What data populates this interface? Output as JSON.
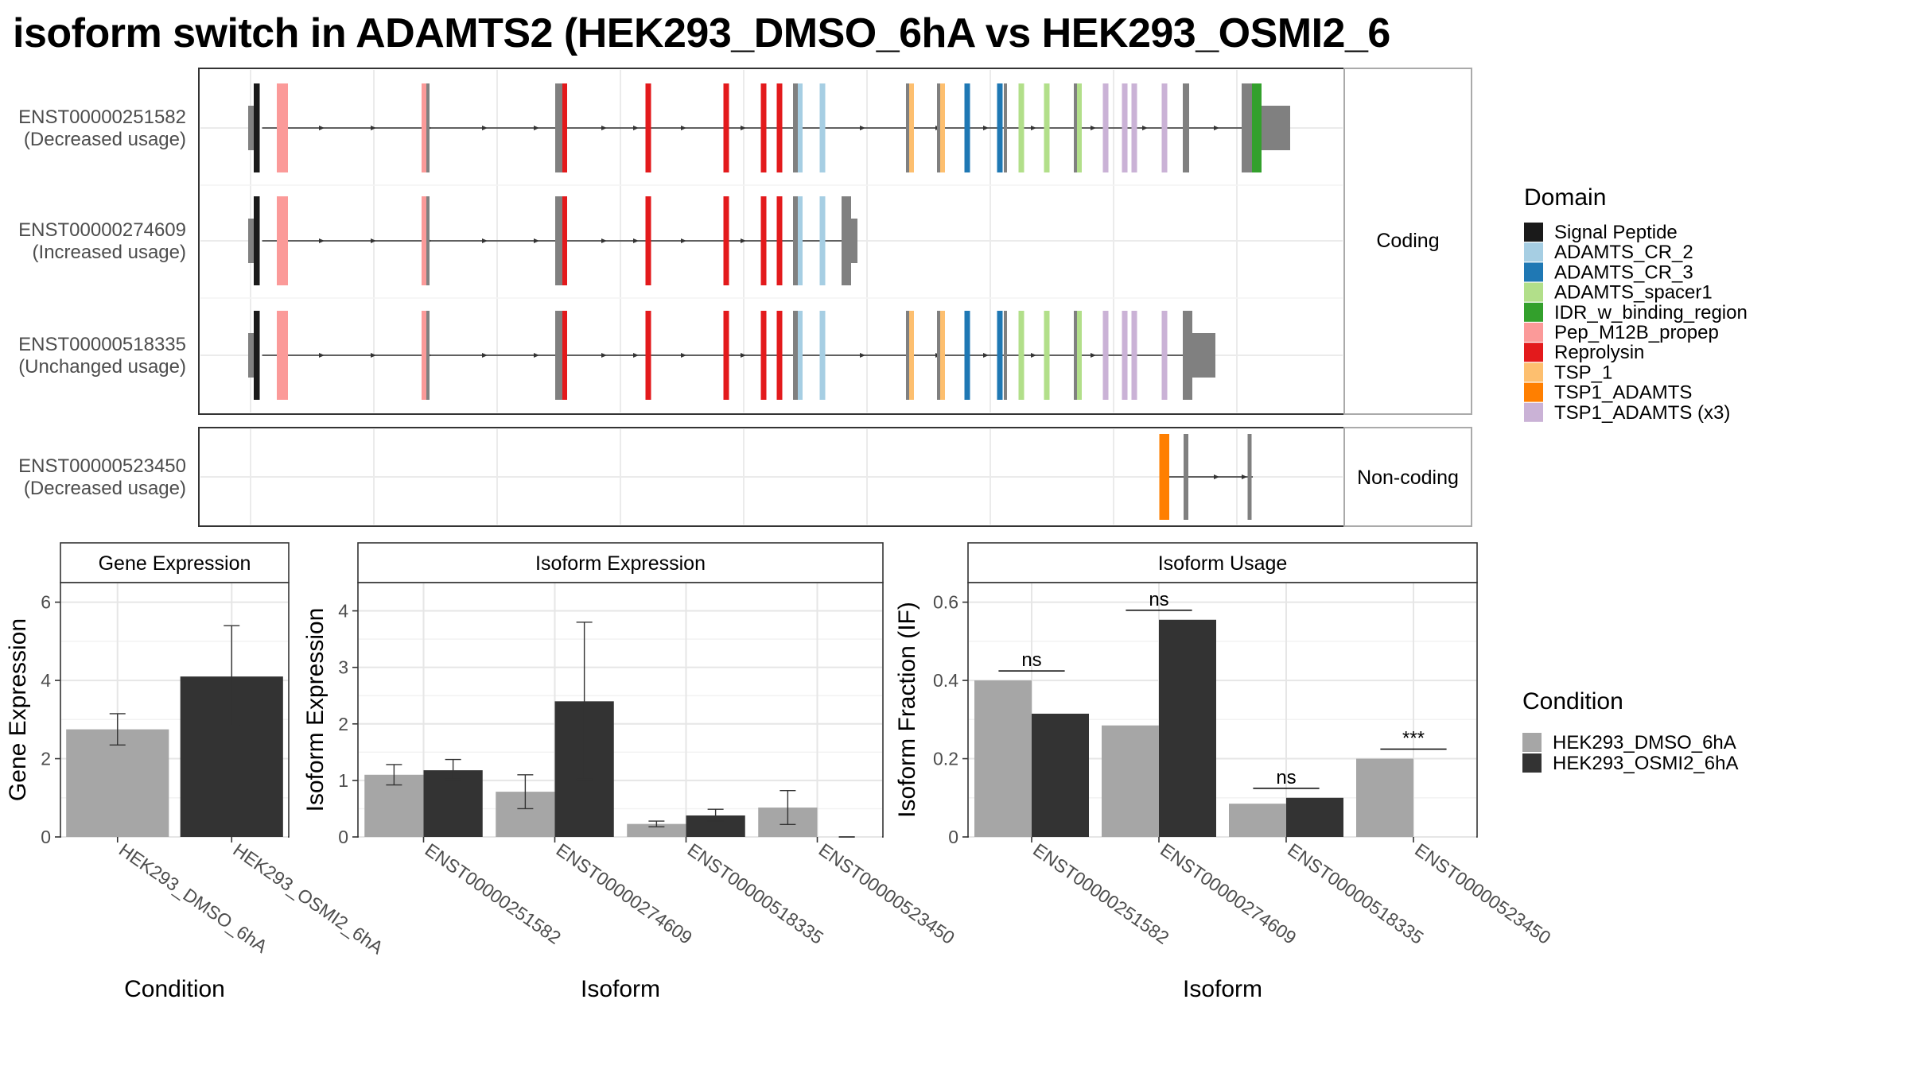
{
  "title": "isoform switch in ADAMTS2 (HEK293_DMSO_6hA vs HEK293_OSMI2_6",
  "structure": {
    "coding_label": "Coding",
    "noncoding_label": "Non-coding",
    "coding": [
      {
        "id": "ENST00000251582",
        "usage": "(Decreased usage)"
      },
      {
        "id": "ENST00000274609",
        "usage": "(Increased usage)"
      },
      {
        "id": "ENST00000518335",
        "usage": "(Unchanged usage)"
      }
    ],
    "noncoding": [
      {
        "id": "ENST00000523450",
        "usage": "(Decreased usage)"
      }
    ]
  },
  "domain_legend": {
    "title": "Domain",
    "items": [
      {
        "label": "Signal Peptide",
        "color": "#1a1a1a"
      },
      {
        "label": "ADAMTS_CR_2",
        "color": "#a6cee3"
      },
      {
        "label": "ADAMTS_CR_3",
        "color": "#1f78b4"
      },
      {
        "label": "ADAMTS_spacer1",
        "color": "#b2df8a"
      },
      {
        "label": "IDR_w_binding_region",
        "color": "#33a02c"
      },
      {
        "label": "Pep_M12B_propep",
        "color": "#fb9a99"
      },
      {
        "label": "Reprolysin",
        "color": "#e31a1c"
      },
      {
        "label": "TSP_1",
        "color": "#fdbf6f"
      },
      {
        "label": "TSP1_ADAMTS",
        "color": "#ff7f00"
      },
      {
        "label": "TSP1_ADAMTS (x3)",
        "color": "#cab2d6"
      }
    ]
  },
  "condition_legend": {
    "title": "Condition",
    "items": [
      {
        "label": "HEK293_DMSO_6hA",
        "color": "#a6a6a6"
      },
      {
        "label": "HEK293_OSMI2_6hA",
        "color": "#333333"
      }
    ]
  },
  "chart_data": [
    {
      "type": "bar",
      "title": "Gene Expression",
      "xlabel": "Condition",
      "ylabel": "Gene Expression",
      "categories": [
        "HEK293_DMSO_6hA",
        "HEK293_OSMI2_6hA"
      ],
      "values": [
        2.75,
        4.1
      ],
      "errors": [
        [
          2.35,
          3.15
        ],
        [
          2.85,
          5.4
        ]
      ],
      "ylim": [
        0,
        6.5
      ],
      "yticks": [
        0,
        2,
        4,
        6
      ]
    },
    {
      "type": "bar",
      "title": "Isoform Expression",
      "xlabel": "Isoform",
      "ylabel": "Isoform Expression",
      "categories": [
        "ENST00000251582",
        "ENST00000274609",
        "ENST00000518335",
        "ENST00000523450"
      ],
      "series": [
        {
          "name": "HEK293_DMSO_6hA",
          "values": [
            1.1,
            0.8,
            0.23,
            0.52
          ],
          "errors": [
            [
              0.92,
              1.28
            ],
            [
              0.5,
              1.1
            ],
            [
              0.18,
              0.28
            ],
            [
              0.22,
              0.82
            ]
          ]
        },
        {
          "name": "HEK293_OSMI2_6hA",
          "values": [
            1.18,
            2.4,
            0.38,
            0.0
          ],
          "errors": [
            [
              1.02,
              1.37
            ],
            [
              1.02,
              3.8
            ],
            [
              0.28,
              0.49
            ],
            [
              0.0,
              0.0
            ]
          ]
        }
      ],
      "ylim": [
        0,
        4.5
      ],
      "yticks": [
        0,
        1,
        2,
        3,
        4
      ]
    },
    {
      "type": "bar",
      "title": "Isoform Usage",
      "xlabel": "Isoform",
      "ylabel": "Isoform Fraction (IF)",
      "categories": [
        "ENST00000251582",
        "ENST00000274609",
        "ENST00000518335",
        "ENST00000523450"
      ],
      "series": [
        {
          "name": "HEK293_DMSO_6hA",
          "values": [
            0.4,
            0.285,
            0.085,
            0.2
          ]
        },
        {
          "name": "HEK293_OSMI2_6hA",
          "values": [
            0.315,
            0.555,
            0.1,
            0.0
          ]
        }
      ],
      "significance": [
        "ns",
        "ns",
        "ns",
        "***"
      ],
      "ylim": [
        0,
        0.65
      ],
      "yticks": [
        0.0,
        0.2,
        0.4,
        0.6
      ]
    }
  ]
}
